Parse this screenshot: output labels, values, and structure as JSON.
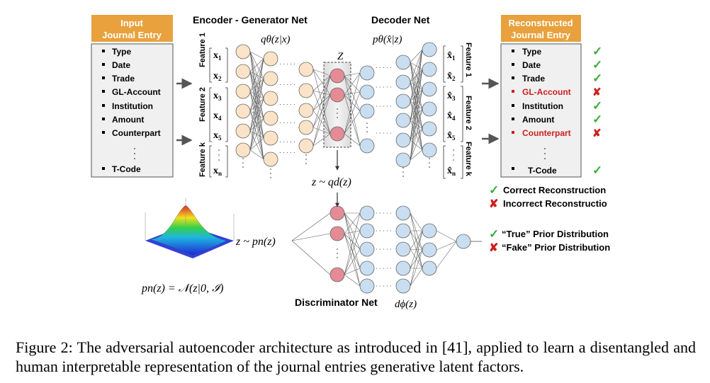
{
  "input_box": {
    "header": [
      "Input",
      "Journal Entry"
    ],
    "items": [
      "Type",
      "Date",
      "Trade",
      "GL-Account",
      "Institution",
      "Amount",
      "Counterpart",
      "T-Code"
    ]
  },
  "output_box": {
    "header": [
      "Reconstructed",
      "Journal Entry"
    ],
    "items": [
      {
        "label": "Type",
        "status": "correct"
      },
      {
        "label": "Date",
        "status": "correct"
      },
      {
        "label": "Trade",
        "status": "correct"
      },
      {
        "label": "GL-Account",
        "status": "incorrect"
      },
      {
        "label": "Institution",
        "status": "correct"
      },
      {
        "label": "Amount",
        "status": "correct"
      },
      {
        "label": "Counterpart",
        "status": "incorrect"
      },
      {
        "label": "T-Code",
        "status": "correct"
      }
    ]
  },
  "encoder": {
    "title": "Encoder - Generator Net",
    "formula": "qθ(z|x)"
  },
  "decoder": {
    "title": "Decoder Net",
    "formula": "pθ(x̂|z)"
  },
  "latent_label": "Z",
  "sample_enc": "z ~ qd(z)",
  "sample_prior": "z ~ pn(z)",
  "prior_formula": "pn(z) = 𝒩(z|0, ℐ)",
  "discriminator": {
    "title": "Discriminator Net",
    "formula": "dϕ(z)"
  },
  "feature_labels_left": [
    "Feature 1",
    "Feature 2",
    "Feature k"
  ],
  "feature_labels_right": [
    "Feature 1",
    "Feature 2",
    "Feature k"
  ],
  "inputs": [
    "x1",
    "x2",
    "x3",
    "x4",
    "x5",
    "xn"
  ],
  "outputs": [
    "x̂1",
    "x̂2",
    "x̂3",
    "x̂4",
    "x̂5",
    "x̂n"
  ],
  "legend_recon": [
    "Correct Reconstruction",
    "Incorrect Reconstructio"
  ],
  "legend_prior": [
    "“True” Prior Distribution",
    "“Fake” Prior Distribution"
  ],
  "colors": {
    "header_orange": "#e8a13c",
    "box_grey": "#f0f0f0",
    "enc_node": "#fbe3c8",
    "latent_node": "#e58b95",
    "dec_node": "#c9def0",
    "check_green": "#3cae3c",
    "cross_red": "#cc1f1f",
    "error_text": "#cc1f1f"
  },
  "caption": "Figure 2: The adversarial autoencoder architecture as introduced in [41], applied to learn a disentangled and human interpretable representation of the journal entries generative latent factors."
}
